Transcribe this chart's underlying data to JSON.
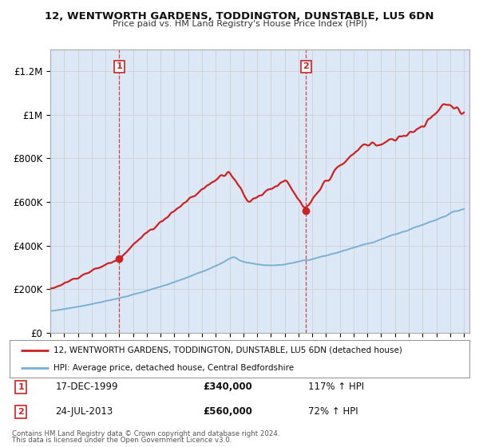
{
  "title": "12, WENTWORTH GARDENS, TODDINGTON, DUNSTABLE, LU5 6DN",
  "subtitle": "Price paid vs. HM Land Registry's House Price Index (HPI)",
  "background_color": "#ffffff",
  "plot_bg_color": "#dce8f5",
  "sale1": {
    "date": 2000.0,
    "price": 340000,
    "label": "1",
    "text": "17-DEC-1999",
    "amount": "£340,000",
    "pct": "117% ↑ HPI"
  },
  "sale2": {
    "date": 2013.55,
    "price": 560000,
    "label": "2",
    "text": "24-JUL-2013",
    "amount": "£560,000",
    "pct": "72% ↑ HPI"
  },
  "hpi_line_color": "#7ab0d4",
  "sale_line_color": "#cc2222",
  "grid_color": "#cccccc",
  "ylim": [
    0,
    1300000
  ],
  "yticks": [
    0,
    200000,
    400000,
    600000,
    800000,
    1000000,
    1200000
  ],
  "ytick_labels": [
    "£0",
    "£200K",
    "£400K",
    "£600K",
    "£800K",
    "£1M",
    "£1.2M"
  ],
  "legend_label_sale": "12, WENTWORTH GARDENS, TODDINGTON, DUNSTABLE, LU5 6DN (detached house)",
  "legend_label_hpi": "HPI: Average price, detached house, Central Bedfordshire",
  "footer1": "Contains HM Land Registry data © Crown copyright and database right 2024.",
  "footer2": "This data is licensed under the Open Government Licence v3.0."
}
